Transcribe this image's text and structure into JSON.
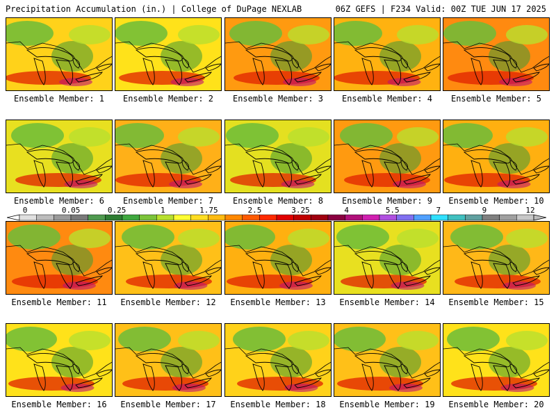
{
  "header": {
    "title": "Precipitation Accumulation (in.) | College of DuPage NEXLAB",
    "run_info": "06Z GEFS | F234 Valid: 00Z TUE JUN 17 2025"
  },
  "legend": {
    "tick_labels": [
      "0",
      "0.05",
      "0.25",
      "1",
      "1.75",
      "2.5",
      "3.25",
      "4",
      "5.5",
      "7",
      "9",
      "12"
    ],
    "colors": [
      "#e0e0e0",
      "#bcbcbc",
      "#9a9a9a",
      "#7a7a7a",
      "#4f9a4f",
      "#2e7d32",
      "#3fa83f",
      "#7cc43a",
      "#b8e02e",
      "#ffff33",
      "#ffdd22",
      "#ffbb11",
      "#ff8800",
      "#ff5a00",
      "#ff2a00",
      "#e00000",
      "#c00000",
      "#a00010",
      "#8a0040",
      "#b0107a",
      "#d020b0",
      "#b050e0",
      "#8070f0",
      "#50a0ff",
      "#30e0ff",
      "#40c0c0",
      "#60a0a0",
      "#808080",
      "#a0a0a0",
      "#c8c8c8"
    ]
  },
  "members": [
    {
      "label": "Ensemble Member: 1",
      "swatch": "#ffd21a"
    },
    {
      "label": "Ensemble Member: 2",
      "swatch": "#ffe21a"
    },
    {
      "label": "Ensemble Member: 3",
      "swatch": "#ff9a10"
    },
    {
      "label": "Ensemble Member: 4",
      "swatch": "#ffb210"
    },
    {
      "label": "Ensemble Member: 5",
      "swatch": "#ff8a10"
    },
    {
      "label": "Ensemble Member: 6",
      "swatch": "#e8e020"
    },
    {
      "label": "Ensemble Member: 7",
      "swatch": "#ffb018"
    },
    {
      "label": "Ensemble Member: 8",
      "swatch": "#e4e020"
    },
    {
      "label": "Ensemble Member: 9",
      "swatch": "#ff9a10"
    },
    {
      "label": "Ensemble Member: 10",
      "swatch": "#ffb010"
    },
    {
      "label": "Ensemble Member: 11",
      "swatch": "#ff8a10"
    },
    {
      "label": "Ensemble Member: 12",
      "swatch": "#ffc018"
    },
    {
      "label": "Ensemble Member: 13",
      "swatch": "#ffb010"
    },
    {
      "label": "Ensemble Member: 14",
      "swatch": "#e8e020"
    },
    {
      "label": "Ensemble Member: 15",
      "swatch": "#ffb818"
    },
    {
      "label": "Ensemble Member: 16",
      "swatch": "#ffe21a"
    },
    {
      "label": "Ensemble Member: 17",
      "swatch": "#ffc018"
    },
    {
      "label": "Ensemble Member: 18",
      "swatch": "#ffd21a"
    },
    {
      "label": "Ensemble Member: 19",
      "swatch": "#ffc018"
    },
    {
      "label": "Ensemble Member: 20",
      "swatch": "#ffe21a"
    }
  ]
}
